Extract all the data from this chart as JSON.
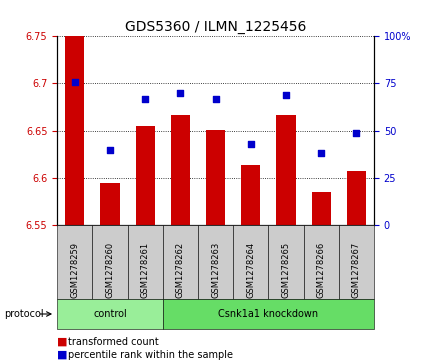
{
  "title": "GDS5360 / ILMN_1225456",
  "samples": [
    "GSM1278259",
    "GSM1278260",
    "GSM1278261",
    "GSM1278262",
    "GSM1278263",
    "GSM1278264",
    "GSM1278265",
    "GSM1278266",
    "GSM1278267"
  ],
  "transformed_counts": [
    6.75,
    6.595,
    6.655,
    6.667,
    6.651,
    6.614,
    6.667,
    6.585,
    6.607
  ],
  "percentile_ranks": [
    76,
    40,
    67,
    70,
    67,
    43,
    69,
    38,
    49
  ],
  "ylim_left": [
    6.55,
    6.75
  ],
  "ylim_right": [
    0,
    100
  ],
  "yticks_left": [
    6.55,
    6.6,
    6.65,
    6.7,
    6.75
  ],
  "yticks_right": [
    0,
    25,
    50,
    75,
    100
  ],
  "bar_color": "#cc0000",
  "dot_color": "#0000cc",
  "groups": [
    {
      "label": "control",
      "start": 0,
      "end": 3,
      "color": "#99ee99"
    },
    {
      "label": "Csnk1a1 knockdown",
      "start": 3,
      "end": 9,
      "color": "#66dd66"
    }
  ],
  "protocol_label": "protocol",
  "legend_bar_label": "transformed count",
  "legend_dot_label": "percentile rank within the sample",
  "title_fontsize": 10,
  "tick_fontsize": 7,
  "sample_fontsize": 6,
  "legend_fontsize": 7,
  "protocol_fontsize": 7,
  "group_fontsize": 7
}
